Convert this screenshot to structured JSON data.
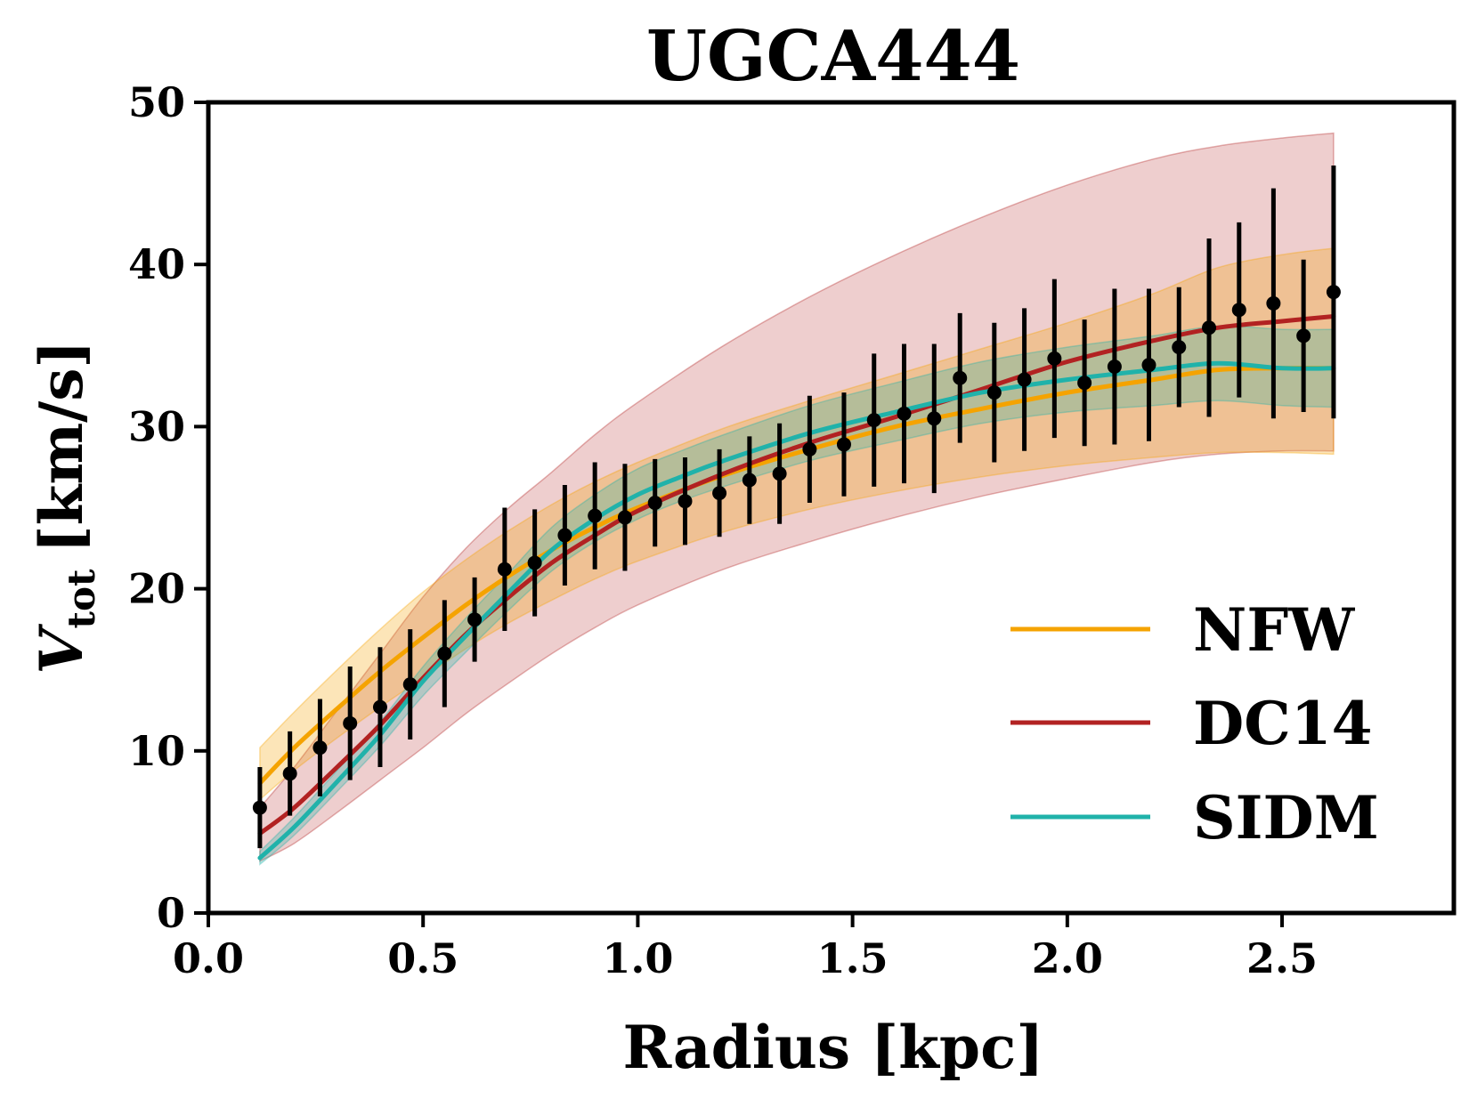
{
  "chart_data": {
    "type": "line",
    "title": "UGCA444",
    "xlabel": "Radius [kpc]",
    "ylabel_main": "V",
    "ylabel_sub": "tot",
    "ylabel_unit": "[km/s]",
    "xlim": [
      0.0,
      2.9
    ],
    "ylim": [
      0,
      50
    ],
    "xticks": [
      0.0,
      0.5,
      1.0,
      1.5,
      2.0,
      2.5
    ],
    "xtick_labels": [
      "0.0",
      "0.5",
      "1.0",
      "1.5",
      "2.0",
      "2.5"
    ],
    "yticks": [
      0,
      10,
      20,
      30,
      40,
      50
    ],
    "ytick_labels": [
      "0",
      "10",
      "20",
      "30",
      "40",
      "50"
    ],
    "grid": false,
    "legend_position": "lower-right",
    "observed": {
      "r": [
        0.12,
        0.19,
        0.26,
        0.33,
        0.4,
        0.47,
        0.55,
        0.62,
        0.69,
        0.76,
        0.83,
        0.9,
        0.97,
        1.04,
        1.11,
        1.19,
        1.26,
        1.33,
        1.4,
        1.48,
        1.55,
        1.62,
        1.69,
        1.75,
        1.83,
        1.9,
        1.97,
        2.04,
        2.11,
        2.19,
        2.26,
        2.33,
        2.4,
        2.48,
        2.55,
        2.62
      ],
      "v": [
        6.5,
        8.6,
        10.2,
        11.7,
        12.7,
        14.1,
        16.0,
        18.1,
        21.2,
        21.6,
        23.3,
        24.5,
        24.4,
        25.3,
        25.4,
        25.9,
        26.7,
        27.1,
        28.6,
        28.9,
        30.4,
        30.8,
        30.5,
        33.0,
        32.1,
        32.9,
        34.2,
        32.7,
        33.7,
        33.8,
        34.9,
        36.1,
        37.2,
        37.6,
        35.6,
        38.3
      ],
      "verr": [
        2.5,
        2.6,
        3.0,
        3.5,
        3.7,
        3.4,
        3.3,
        2.6,
        3.8,
        3.3,
        3.1,
        3.3,
        3.3,
        2.7,
        2.7,
        2.7,
        2.7,
        3.1,
        3.3,
        3.2,
        4.1,
        4.3,
        4.6,
        4.0,
        4.3,
        4.4,
        4.9,
        3.9,
        4.8,
        4.7,
        3.7,
        5.5,
        5.4,
        7.1,
        4.7,
        7.8
      ],
      "color": "#000000"
    },
    "series": [
      {
        "name": "NFW",
        "color": "#f5a300",
        "r": [
          0.12,
          0.2,
          0.3,
          0.4,
          0.5,
          0.6,
          0.7,
          0.8,
          0.9,
          1.0,
          1.2,
          1.4,
          1.6,
          1.8,
          2.0,
          2.2,
          2.35,
          2.5,
          2.62
        ],
        "v": [
          8.0,
          10.2,
          12.6,
          14.9,
          17.0,
          19.0,
          20.8,
          22.4,
          23.8,
          25.0,
          27.0,
          28.6,
          30.0,
          31.1,
          32.1,
          32.9,
          33.5,
          33.6,
          33.6
        ],
        "lower": [
          7.0,
          8.8,
          10.8,
          12.7,
          14.5,
          16.3,
          17.9,
          19.3,
          20.6,
          21.7,
          23.5,
          24.9,
          26.0,
          26.9,
          27.6,
          28.1,
          28.4,
          28.4,
          28.3
        ],
        "upper": [
          10.2,
          12.4,
          15.0,
          17.5,
          19.8,
          21.8,
          23.6,
          25.2,
          26.6,
          27.8,
          29.9,
          31.6,
          33.2,
          34.8,
          36.4,
          38.2,
          39.8,
          40.6,
          41.0
        ]
      },
      {
        "name": "DC14",
        "color": "#b22222",
        "r": [
          0.12,
          0.2,
          0.3,
          0.4,
          0.5,
          0.6,
          0.7,
          0.8,
          0.9,
          1.0,
          1.2,
          1.4,
          1.6,
          1.8,
          2.0,
          2.2,
          2.35,
          2.5,
          2.62
        ],
        "v": [
          4.9,
          6.5,
          9.0,
          11.6,
          14.5,
          17.2,
          19.5,
          21.6,
          23.3,
          24.8,
          27.1,
          29.0,
          30.6,
          32.3,
          34.0,
          35.3,
          36.1,
          36.5,
          36.8
        ],
        "lower": [
          3.2,
          4.3,
          6.2,
          8.2,
          10.2,
          12.3,
          14.2,
          16.0,
          17.6,
          19.0,
          21.2,
          22.9,
          24.4,
          25.7,
          26.8,
          27.8,
          28.3,
          28.5,
          28.5
        ],
        "upper": [
          6.5,
          9.0,
          12.5,
          16.0,
          19.5,
          22.5,
          25.0,
          27.2,
          29.5,
          31.5,
          35.0,
          38.0,
          40.6,
          42.9,
          44.9,
          46.5,
          47.3,
          47.8,
          48.1
        ]
      },
      {
        "name": "SIDM",
        "color": "#20b2aa",
        "r": [
          0.12,
          0.2,
          0.3,
          0.4,
          0.5,
          0.6,
          0.7,
          0.8,
          0.9,
          1.0,
          1.1,
          1.2,
          1.4,
          1.6,
          1.8,
          2.0,
          2.2,
          2.35,
          2.5,
          2.62
        ],
        "v": [
          3.4,
          5.3,
          8.1,
          11.0,
          14.3,
          17.1,
          19.8,
          22.4,
          24.3,
          25.8,
          26.9,
          27.9,
          29.6,
          30.9,
          32.1,
          32.9,
          33.5,
          33.9,
          33.6,
          33.6
        ],
        "lower": [
          3.0,
          4.8,
          7.5,
          10.3,
          13.4,
          16.1,
          18.7,
          21.1,
          22.9,
          24.3,
          25.4,
          26.3,
          27.9,
          29.1,
          30.2,
          30.9,
          31.3,
          31.6,
          31.3,
          31.2
        ],
        "upper": [
          3.8,
          5.9,
          8.8,
          11.8,
          15.2,
          18.2,
          21.0,
          23.8,
          25.8,
          27.4,
          28.5,
          29.5,
          31.3,
          32.7,
          34.0,
          34.9,
          35.6,
          36.2,
          36.0,
          36.0
        ]
      }
    ]
  }
}
